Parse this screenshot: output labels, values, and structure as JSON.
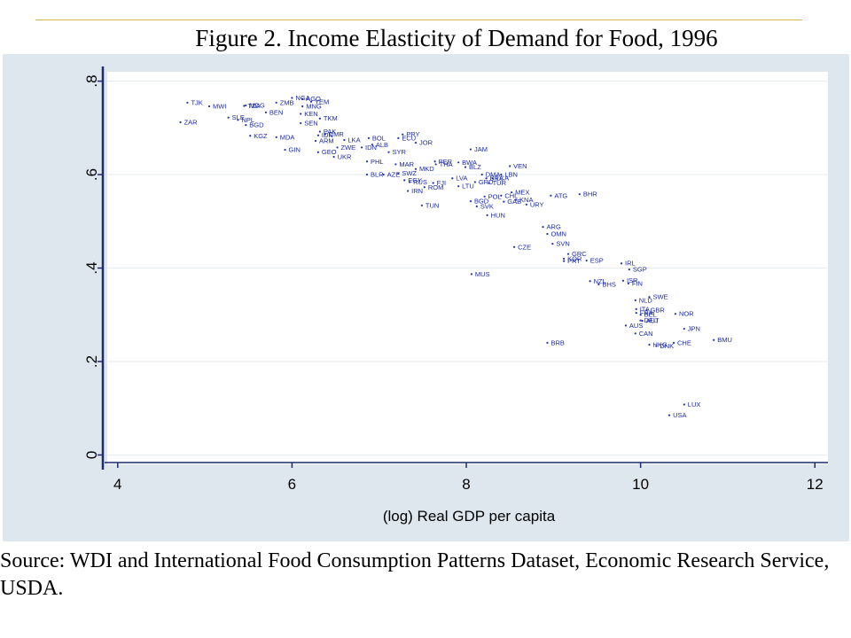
{
  "title": "Figure 2. Income Elasticity of Demand for Food, 1996",
  "source": "Source: WDI and International Food Consumption Patterns Dataset, Economic Research Service, USDA.",
  "colors": {
    "marker": "#2233aa",
    "label": "#1a2aa8",
    "panel": "#dfe7ee",
    "plot": "#ffffff",
    "axis": "#1c2a6e",
    "grid": "#e6ebef"
  },
  "chart_data": {
    "type": "scatter",
    "xlabel": "(log) Real GDP per capita",
    "ylabel": "",
    "xlim": [
      3.88,
      12.15
    ],
    "ylim": [
      -0.02,
      0.82
    ],
    "xticks": [
      4,
      6,
      8,
      10,
      12
    ],
    "xtick_labels": [
      "4",
      "6",
      "8",
      "10",
      "12"
    ],
    "yticks": [
      0,
      0.2,
      0.4,
      0.6,
      0.8
    ],
    "ytick_labels": [
      "0",
      ".2",
      ".4",
      ".6",
      ".8"
    ],
    "grid": true,
    "points": [
      {
        "label": "TJK",
        "x": 4.8,
        "y": 0.754
      },
      {
        "label": "MWI",
        "x": 5.05,
        "y": 0.746
      },
      {
        "label": "ZAR",
        "x": 4.72,
        "y": 0.712
      },
      {
        "label": "SLE",
        "x": 5.27,
        "y": 0.722
      },
      {
        "label": "NPL",
        "x": 5.38,
        "y": 0.717
      },
      {
        "label": "MDG",
        "x": 5.47,
        "y": 0.748
      },
      {
        "label": "TZA",
        "x": 5.45,
        "y": 0.747
      },
      {
        "label": "BEN",
        "x": 5.7,
        "y": 0.733
      },
      {
        "label": "BGD",
        "x": 5.47,
        "y": 0.706
      },
      {
        "label": "KGZ",
        "x": 5.52,
        "y": 0.683
      },
      {
        "label": "MDA",
        "x": 5.82,
        "y": 0.68
      },
      {
        "label": "GIN",
        "x": 5.92,
        "y": 0.653
      },
      {
        "label": "ZMB",
        "x": 5.82,
        "y": 0.754
      },
      {
        "label": "NGA",
        "x": 6.0,
        "y": 0.764
      },
      {
        "label": "AGO",
        "x": 6.12,
        "y": 0.762
      },
      {
        "label": "MNG",
        "x": 6.12,
        "y": 0.746
      },
      {
        "label": "YEM",
        "x": 6.22,
        "y": 0.756
      },
      {
        "label": "KEN",
        "x": 6.1,
        "y": 0.73
      },
      {
        "label": "TKM",
        "x": 6.32,
        "y": 0.72
      },
      {
        "label": "SEN",
        "x": 6.1,
        "y": 0.71
      },
      {
        "label": "PAK",
        "x": 6.32,
        "y": 0.692
      },
      {
        "label": "CMR",
        "x": 6.38,
        "y": 0.686
      },
      {
        "label": "IDN",
        "x": 6.3,
        "y": 0.684
      },
      {
        "label": "ARM",
        "x": 6.27,
        "y": 0.672
      },
      {
        "label": "GEO",
        "x": 6.3,
        "y": 0.648
      },
      {
        "label": "LKA",
        "x": 6.6,
        "y": 0.674
      },
      {
        "label": "ALB",
        "x": 6.92,
        "y": 0.664
      },
      {
        "label": "ZWE",
        "x": 6.52,
        "y": 0.658
      },
      {
        "label": "IDN",
        "x": 6.8,
        "y": 0.658
      },
      {
        "label": "UKR",
        "x": 6.48,
        "y": 0.638
      },
      {
        "label": "BOL",
        "x": 6.88,
        "y": 0.678
      },
      {
        "label": "ECU",
        "x": 7.22,
        "y": 0.678
      },
      {
        "label": "PRY",
        "x": 7.27,
        "y": 0.686
      },
      {
        "label": "JOR",
        "x": 7.42,
        "y": 0.668
      },
      {
        "label": "SYR",
        "x": 7.11,
        "y": 0.648
      },
      {
        "label": "PHL",
        "x": 6.86,
        "y": 0.628
      },
      {
        "label": "MAR",
        "x": 7.19,
        "y": 0.622
      },
      {
        "label": "MKD",
        "x": 7.42,
        "y": 0.612
      },
      {
        "label": "SWZ",
        "x": 7.22,
        "y": 0.603
      },
      {
        "label": "BLR",
        "x": 6.86,
        "y": 0.6
      },
      {
        "label": "AZE",
        "x": 7.05,
        "y": 0.6
      },
      {
        "label": "EGY",
        "x": 7.29,
        "y": 0.588
      },
      {
        "label": "RUS",
        "x": 7.35,
        "y": 0.584
      },
      {
        "label": "FJI",
        "x": 7.62,
        "y": 0.582
      },
      {
        "label": "ROM",
        "x": 7.52,
        "y": 0.573
      },
      {
        "label": "IRN",
        "x": 7.33,
        "y": 0.565
      },
      {
        "label": "TUN",
        "x": 7.49,
        "y": 0.534
      },
      {
        "label": "PER",
        "x": 7.64,
        "y": 0.628
      },
      {
        "label": "THA",
        "x": 7.65,
        "y": 0.622
      },
      {
        "label": "BWA",
        "x": 7.91,
        "y": 0.626
      },
      {
        "label": "BLZ",
        "x": 7.99,
        "y": 0.616
      },
      {
        "label": "JAM",
        "x": 8.05,
        "y": 0.654
      },
      {
        "label": "LVA",
        "x": 7.84,
        "y": 0.592
      },
      {
        "label": "LTU",
        "x": 7.91,
        "y": 0.575
      },
      {
        "label": "DMA",
        "x": 8.18,
        "y": 0.6
      },
      {
        "label": "LBN",
        "x": 8.4,
        "y": 0.6
      },
      {
        "label": "BRA",
        "x": 8.23,
        "y": 0.592
      },
      {
        "label": "LCA",
        "x": 8.3,
        "y": 0.592
      },
      {
        "label": "GRD",
        "x": 8.1,
        "y": 0.584
      },
      {
        "label": "TUR",
        "x": 8.26,
        "y": 0.582
      },
      {
        "label": "VEN",
        "x": 8.5,
        "y": 0.618
      },
      {
        "label": "POL",
        "x": 8.21,
        "y": 0.553
      },
      {
        "label": "CHL",
        "x": 8.4,
        "y": 0.555
      },
      {
        "label": "MEX",
        "x": 8.52,
        "y": 0.562
      },
      {
        "label": "BGD",
        "x": 8.05,
        "y": 0.543
      },
      {
        "label": "SVK",
        "x": 8.12,
        "y": 0.532
      },
      {
        "label": "GAB",
        "x": 8.43,
        "y": 0.542
      },
      {
        "label": "KNA",
        "x": 8.57,
        "y": 0.546
      },
      {
        "label": "URY",
        "x": 8.69,
        "y": 0.536
      },
      {
        "label": "HUN",
        "x": 8.24,
        "y": 0.513
      },
      {
        "label": "ATG",
        "x": 8.97,
        "y": 0.555
      },
      {
        "label": "BHR",
        "x": 9.3,
        "y": 0.558
      },
      {
        "label": "ARG",
        "x": 8.88,
        "y": 0.488
      },
      {
        "label": "OMN",
        "x": 8.93,
        "y": 0.473
      },
      {
        "label": "SVN",
        "x": 8.99,
        "y": 0.452
      },
      {
        "label": "CZE",
        "x": 8.55,
        "y": 0.445
      },
      {
        "label": "GRC",
        "x": 9.17,
        "y": 0.43
      },
      {
        "label": "KOR",
        "x": 9.12,
        "y": 0.42
      },
      {
        "label": "PRT",
        "x": 9.12,
        "y": 0.415
      },
      {
        "label": "ESP",
        "x": 9.38,
        "y": 0.416
      },
      {
        "label": "IRL",
        "x": 9.78,
        "y": 0.41
      },
      {
        "label": "SGP",
        "x": 9.87,
        "y": 0.397
      },
      {
        "label": "MUS",
        "x": 8.06,
        "y": 0.387
      },
      {
        "label": "NZL",
        "x": 9.42,
        "y": 0.372
      },
      {
        "label": "BHS",
        "x": 9.52,
        "y": 0.365
      },
      {
        "label": "ISR",
        "x": 9.8,
        "y": 0.373
      },
      {
        "label": "FIN",
        "x": 9.86,
        "y": 0.367
      },
      {
        "label": "SWE",
        "x": 10.1,
        "y": 0.338
      },
      {
        "label": "NLD",
        "x": 9.94,
        "y": 0.331
      },
      {
        "label": "ITA",
        "x": 9.95,
        "y": 0.312
      },
      {
        "label": "GBR",
        "x": 10.07,
        "y": 0.31
      },
      {
        "label": "FRA",
        "x": 9.95,
        "y": 0.304
      },
      {
        "label": "BEL",
        "x": 10.0,
        "y": 0.3
      },
      {
        "label": "NOR",
        "x": 10.4,
        "y": 0.302
      },
      {
        "label": "DEU",
        "x": 10.0,
        "y": 0.288
      },
      {
        "label": "AUT",
        "x": 10.02,
        "y": 0.287
      },
      {
        "label": "AUS",
        "x": 9.83,
        "y": 0.277
      },
      {
        "label": "JPN",
        "x": 10.5,
        "y": 0.27
      },
      {
        "label": "CAN",
        "x": 9.94,
        "y": 0.26
      },
      {
        "label": "BRB",
        "x": 8.93,
        "y": 0.24
      },
      {
        "label": "HKG",
        "x": 10.1,
        "y": 0.236
      },
      {
        "label": "CHE",
        "x": 10.38,
        "y": 0.24
      },
      {
        "label": "DNK",
        "x": 10.18,
        "y": 0.233
      },
      {
        "label": "BMU",
        "x": 10.84,
        "y": 0.246
      },
      {
        "label": "LUX",
        "x": 10.5,
        "y": 0.108
      },
      {
        "label": "USA",
        "x": 10.33,
        "y": 0.085
      }
    ]
  }
}
